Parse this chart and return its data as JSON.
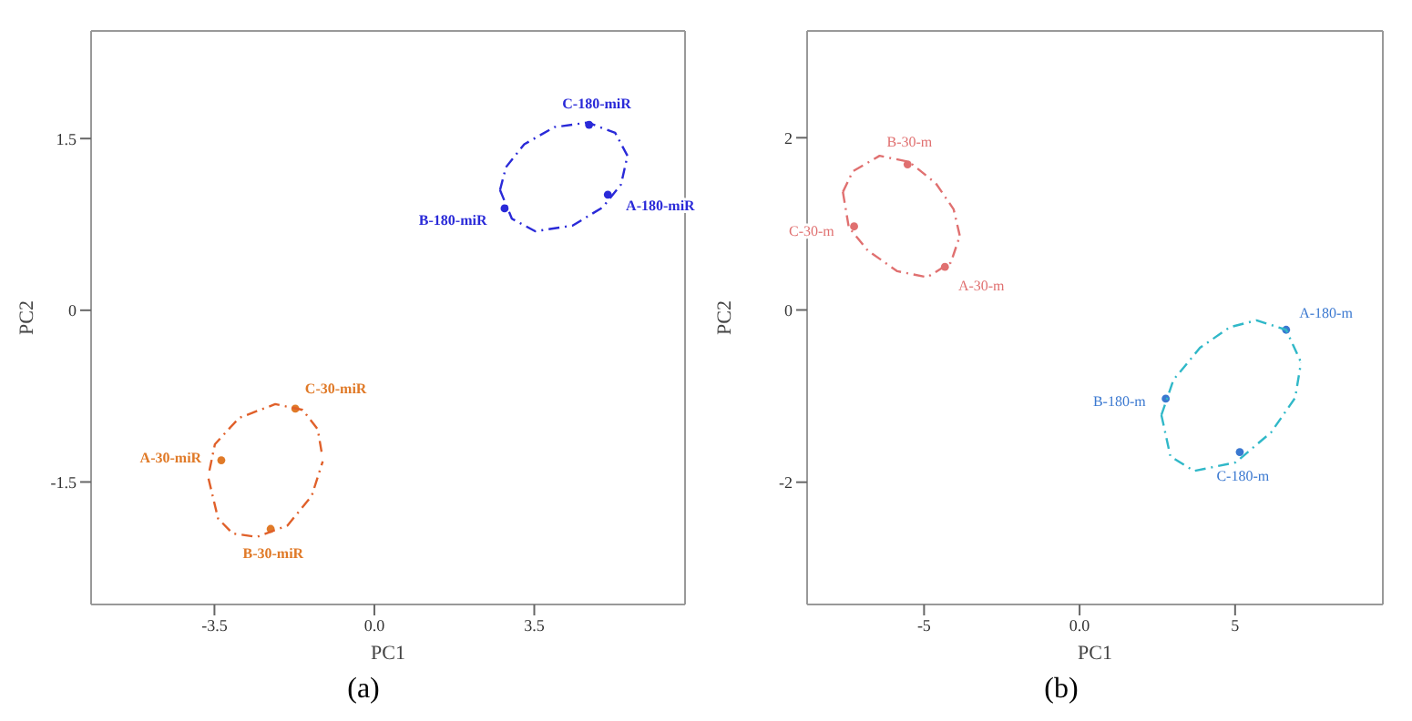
{
  "chart_data": [
    {
      "type": "scatter",
      "title": "(a)",
      "xlabel": "PC1",
      "ylabel": "PC2",
      "xlim": [
        -6.2,
        6.8
      ],
      "ylim": [
        -2.57,
        2.44
      ],
      "xticks": [
        -3.5,
        {
          "value": 0,
          "label": "0.0"
        },
        3.5
      ],
      "yticks": [
        1.5,
        0,
        -1.5
      ],
      "grid": false,
      "legend": false,
      "marker": "circle",
      "series": [
        {
          "color": "#2a2ad8",
          "x": [
            5.11,
            2.85,
            4.7
          ],
          "values": [
            1.01,
            0.89,
            1.62
          ],
          "value_labels": [
            "A-180-miR",
            "B-180-miR",
            "C-180-miR"
          ]
        },
        {
          "color": "#e07a28",
          "x": [
            -3.35,
            -2.27,
            -1.73
          ],
          "values": [
            -1.31,
            -1.91,
            -0.86
          ],
          "value_labels": [
            "A-30-miR",
            "B-30-miR",
            "C-30-miR"
          ]
        },
        {
          "type": "line",
          "color": "#2a2ad8",
          "line_style": "dashed",
          "marker": "none",
          "x": [
            2.75,
            2.88,
            3.28,
            3.94,
            4.67,
            5.27,
            5.54
          ],
          "values": [
            1.05,
            1.25,
            1.45,
            1.6,
            1.64,
            1.55,
            1.35
          ]
        },
        {
          "type": "line",
          "color": "#2a2ad8",
          "line_style": "dashed",
          "marker": "none",
          "x": [
            2.75,
            3.01,
            3.52,
            4.34,
            5.0,
            5.4,
            5.54
          ],
          "values": [
            1.05,
            0.8,
            0.69,
            0.74,
            0.9,
            1.1,
            1.35
          ]
        },
        {
          "type": "line",
          "color": "#e0602a",
          "line_style": "dashed",
          "marker": "none",
          "x": [
            -3.61,
            -3.49,
            -2.96,
            -2.17,
            -1.57,
            -1.24,
            -1.15
          ],
          "values": [
            -1.4,
            -1.17,
            -0.94,
            -0.82,
            -0.87,
            -1.04,
            -1.25
          ]
        },
        {
          "type": "line",
          "color": "#e0602a",
          "line_style": "dashed",
          "marker": "none",
          "x": [
            -3.63,
            -3.42,
            -3.1,
            -2.57,
            -1.9,
            -1.37,
            -1.13
          ],
          "values": [
            -1.47,
            -1.82,
            -1.95,
            -1.98,
            -1.88,
            -1.62,
            -1.32
          ]
        }
      ]
    },
    {
      "type": "scatter",
      "title": "(b)",
      "xlabel": "PC1",
      "ylabel": "PC2",
      "xlim": [
        -8.76,
        9.75
      ],
      "ylim": [
        -3.42,
        3.24
      ],
      "xticks": [
        -5,
        {
          "value": 0,
          "label": "0.0"
        },
        5
      ],
      "yticks": [
        2,
        0,
        -2
      ],
      "grid": false,
      "legend": false,
      "marker": "circle",
      "series": [
        {
          "color": "#e07070",
          "x": [
            -4.33,
            -5.53,
            -7.25
          ],
          "values": [
            0.5,
            1.69,
            0.97
          ],
          "value_labels": [
            "A-30-m",
            "B-30-m",
            "C-30-m"
          ]
        },
        {
          "color": "#3a78d0",
          "x": [
            6.64,
            2.77,
            5.15
          ],
          "values": [
            -0.23,
            -1.03,
            -1.65
          ],
          "value_labels": [
            "A-180-m",
            "B-180-m",
            "C-180-m"
          ]
        },
        {
          "type": "line",
          "color": "#e07070",
          "line_style": "dashed",
          "marker": "none",
          "x": [
            -7.61,
            -7.29,
            -6.43,
            -5.48,
            -4.62,
            -4.05,
            -3.85
          ],
          "values": [
            1.37,
            1.61,
            1.79,
            1.72,
            1.47,
            1.17,
            0.86
          ]
        },
        {
          "type": "line",
          "color": "#e07070",
          "line_style": "dashed",
          "marker": "none",
          "x": [
            -7.61,
            -7.42,
            -6.81,
            -5.86,
            -4.9,
            -4.14,
            -3.85
          ],
          "values": [
            1.37,
            0.96,
            0.69,
            0.45,
            0.38,
            0.55,
            0.86
          ]
        },
        {
          "type": "line",
          "color": "#30b8c8",
          "line_style": "dashed",
          "marker": "none",
          "x": [
            2.63,
            3.02,
            3.87,
            4.83,
            5.69,
            6.64,
            7.12
          ],
          "values": [
            -1.22,
            -0.81,
            -0.44,
            -0.2,
            -0.12,
            -0.23,
            -0.61
          ]
        },
        {
          "type": "line",
          "color": "#30b8c8",
          "line_style": "dashed",
          "marker": "none",
          "x": [
            2.63,
            2.92,
            3.68,
            5.02,
            6.16,
            6.93,
            7.12
          ],
          "values": [
            -1.22,
            -1.7,
            -1.87,
            -1.77,
            -1.42,
            -1.02,
            -0.61
          ]
        }
      ]
    }
  ]
}
